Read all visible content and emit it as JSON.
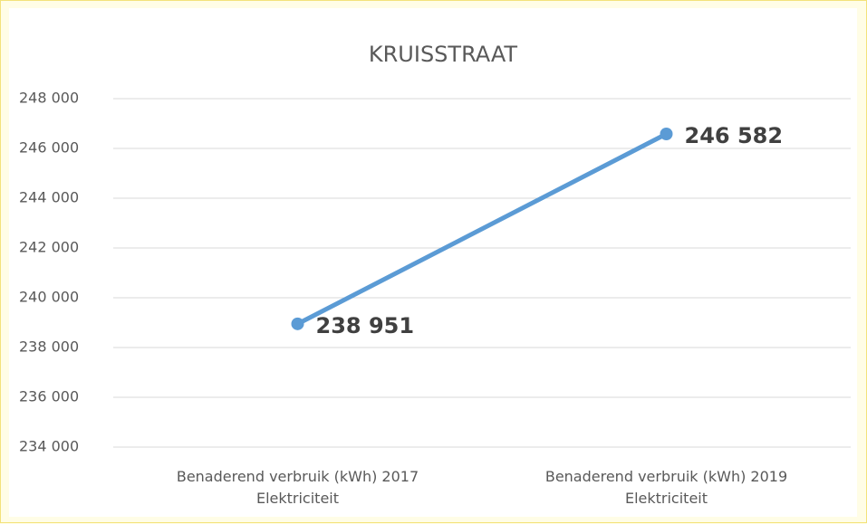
{
  "chart_data": {
    "type": "line",
    "title": "KRUISSTRAAT",
    "categories": [
      "Benaderend verbruik (kWh) 2017 Elektriciteit",
      "Benaderend verbruik (kWh) 2019 Elektriciteit"
    ],
    "series": [
      {
        "name": "Elektriciteit",
        "color": "#5b9bd5",
        "values": [
          238951,
          246582
        ],
        "value_labels": [
          "238 951",
          "246 582"
        ]
      }
    ],
    "ylim": [
      234000,
      248000
    ],
    "yticks": [
      {
        "value": 234000,
        "label": "234 000"
      },
      {
        "value": 236000,
        "label": "236 000"
      },
      {
        "value": 238000,
        "label": "238 000"
      },
      {
        "value": 240000,
        "label": "240 000"
      },
      {
        "value": 242000,
        "label": "242 000"
      },
      {
        "value": 244000,
        "label": "244 000"
      },
      {
        "value": 246000,
        "label": "246 000"
      },
      {
        "value": 248000,
        "label": "248 000"
      }
    ],
    "grid": true
  }
}
